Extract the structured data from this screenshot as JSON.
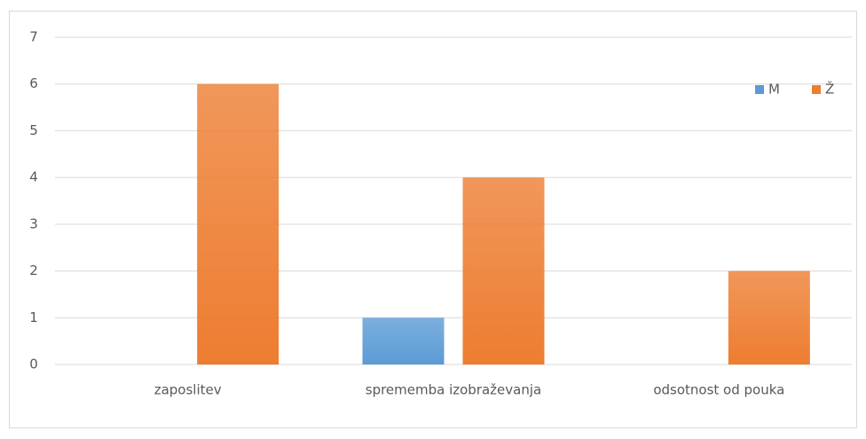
{
  "chart_data": {
    "type": "bar",
    "categories": [
      "zaposlitev",
      "sprememba izobraževanja",
      "odsotnost od pouka"
    ],
    "series": [
      {
        "name": "M",
        "color": "#5b9bd5",
        "values": [
          0,
          1,
          0
        ]
      },
      {
        "name": "Ž",
        "color": "#ed7d31",
        "values": [
          6,
          4,
          2
        ]
      }
    ],
    "ylim": [
      0,
      7
    ],
    "yticks": [
      0,
      1,
      2,
      3,
      4,
      5,
      6,
      7
    ],
    "grid": true,
    "legend": "top-right"
  }
}
